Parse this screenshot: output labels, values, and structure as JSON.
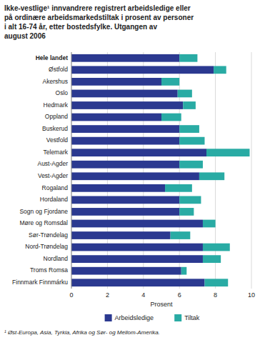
{
  "chart_data": {
    "type": "bar",
    "orientation": "horizontal",
    "stacked": true,
    "title": [
      "Ikke-vestlige¹ innvandrere registrert arbeidsledige eller",
      "på ordinære arbeidsmarkedstiltak i prosent av personer",
      "i alt 16-74 år, etter bostedsfylke. Utgangen av",
      "august 2006"
    ],
    "footnote": "¹ Øst-Europa, Asia, Tyrkia, Afrika og Sør- og Mellom-Amerika.",
    "xlabel": "Prosent",
    "categories": [
      "Hele landet",
      "Østfold",
      "Akershus",
      "Oslo",
      "Hedmark",
      "Oppland",
      "Buskerud",
      "Vestfold",
      "Telemark",
      "Aust-Agder",
      "Vest-Agder",
      "Rogaland",
      "Hordaland",
      "Sogn og Fjordane",
      "Møre og Romsdal",
      "Sør-Trøndelag",
      "Nord-Trøndelag",
      "Nordland",
      "Troms Romsa",
      "Finnmark Finnmárku"
    ],
    "series": [
      {
        "name": "Arbeidsledige",
        "color": "#2b3990",
        "values": [
          6.0,
          7.9,
          5.0,
          5.9,
          6.2,
          5.0,
          6.0,
          6.0,
          7.5,
          6.0,
          7.1,
          5.2,
          6.0,
          6.0,
          7.3,
          5.5,
          7.3,
          7.3,
          6.1,
          7.4
        ]
      },
      {
        "name": "Tiltak",
        "color": "#29aba4",
        "values": [
          1.0,
          0.7,
          1.0,
          0.8,
          0.7,
          1.1,
          1.1,
          1.4,
          2.4,
          1.3,
          1.4,
          1.5,
          1.2,
          0.8,
          0.7,
          1.1,
          1.5,
          1.0,
          0.3,
          1.3
        ]
      }
    ],
    "xlim": [
      0,
      10
    ],
    "xticks": [
      0,
      2,
      4,
      6,
      8,
      10
    ],
    "grid": true,
    "legend": "bottom"
  }
}
